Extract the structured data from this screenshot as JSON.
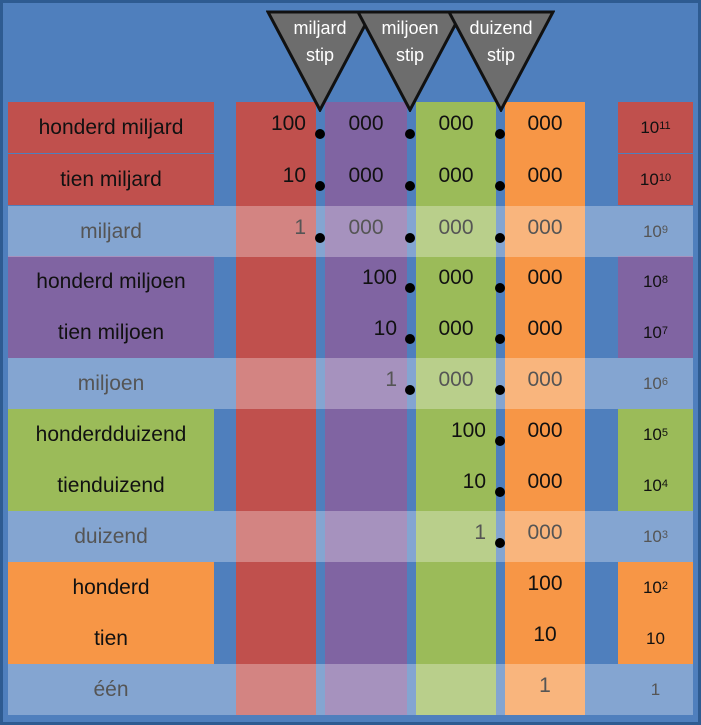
{
  "separators": [
    {
      "line1": "miljard",
      "line2": "stip"
    },
    {
      "line1": "miljoen",
      "line2": "stip"
    },
    {
      "line1": "duizend",
      "line2": "stip"
    }
  ],
  "rows": [
    {
      "name": "honderd miljard",
      "cells": [
        "100",
        "000",
        "000",
        "000"
      ],
      "power_base": "10",
      "power_exp": "11",
      "group": "miljard",
      "light": false
    },
    {
      "name": "tien miljard",
      "cells": [
        "10",
        "000",
        "000",
        "000"
      ],
      "power_base": "10",
      "power_exp": "10",
      "group": "miljard",
      "light": false
    },
    {
      "name": "miljard",
      "cells": [
        "1",
        "000",
        "000",
        "000"
      ],
      "power_base": "10",
      "power_exp": "9",
      "group": "miljard",
      "light": true
    },
    {
      "name": "honderd miljoen",
      "cells": [
        "",
        "100",
        "000",
        "000"
      ],
      "power_base": "10",
      "power_exp": "8",
      "group": "miljoen",
      "light": false
    },
    {
      "name": "tien miljoen",
      "cells": [
        "",
        "10",
        "000",
        "000"
      ],
      "power_base": "10",
      "power_exp": "7",
      "group": "miljoen",
      "light": false
    },
    {
      "name": "miljoen",
      "cells": [
        "",
        "1",
        "000",
        "000"
      ],
      "power_base": "10",
      "power_exp": "6",
      "group": "miljoen",
      "light": true
    },
    {
      "name": "honderdduizend",
      "cells": [
        "",
        "",
        "100",
        "000"
      ],
      "power_base": "10",
      "power_exp": "5",
      "group": "duizend",
      "light": false
    },
    {
      "name": "tienduizend",
      "cells": [
        "",
        "",
        "10",
        "000"
      ],
      "power_base": "10",
      "power_exp": "4",
      "group": "duizend",
      "light": false
    },
    {
      "name": "duizend",
      "cells": [
        "",
        "",
        "1",
        "000"
      ],
      "power_base": "10",
      "power_exp": "3",
      "group": "duizend",
      "light": true
    },
    {
      "name": "honderd",
      "cells": [
        "",
        "",
        "",
        "100"
      ],
      "power_base": "10",
      "power_exp": "2",
      "group": "een",
      "light": false
    },
    {
      "name": "tien",
      "cells": [
        "",
        "",
        "",
        "10"
      ],
      "power_base": "10",
      "power_exp": "",
      "group": "een",
      "light": false
    },
    {
      "name": "één",
      "cells": [
        "",
        "",
        "",
        "1"
      ],
      "power_base": "1",
      "power_exp": "",
      "group": "een",
      "light": true
    }
  ],
  "colors": {
    "background": "#4f7fbd",
    "miljard": "#c0504d",
    "miljoen": "#8064a2",
    "duizend": "#9bbb59",
    "een": "#f79646",
    "separator": "#6d6d6d"
  }
}
